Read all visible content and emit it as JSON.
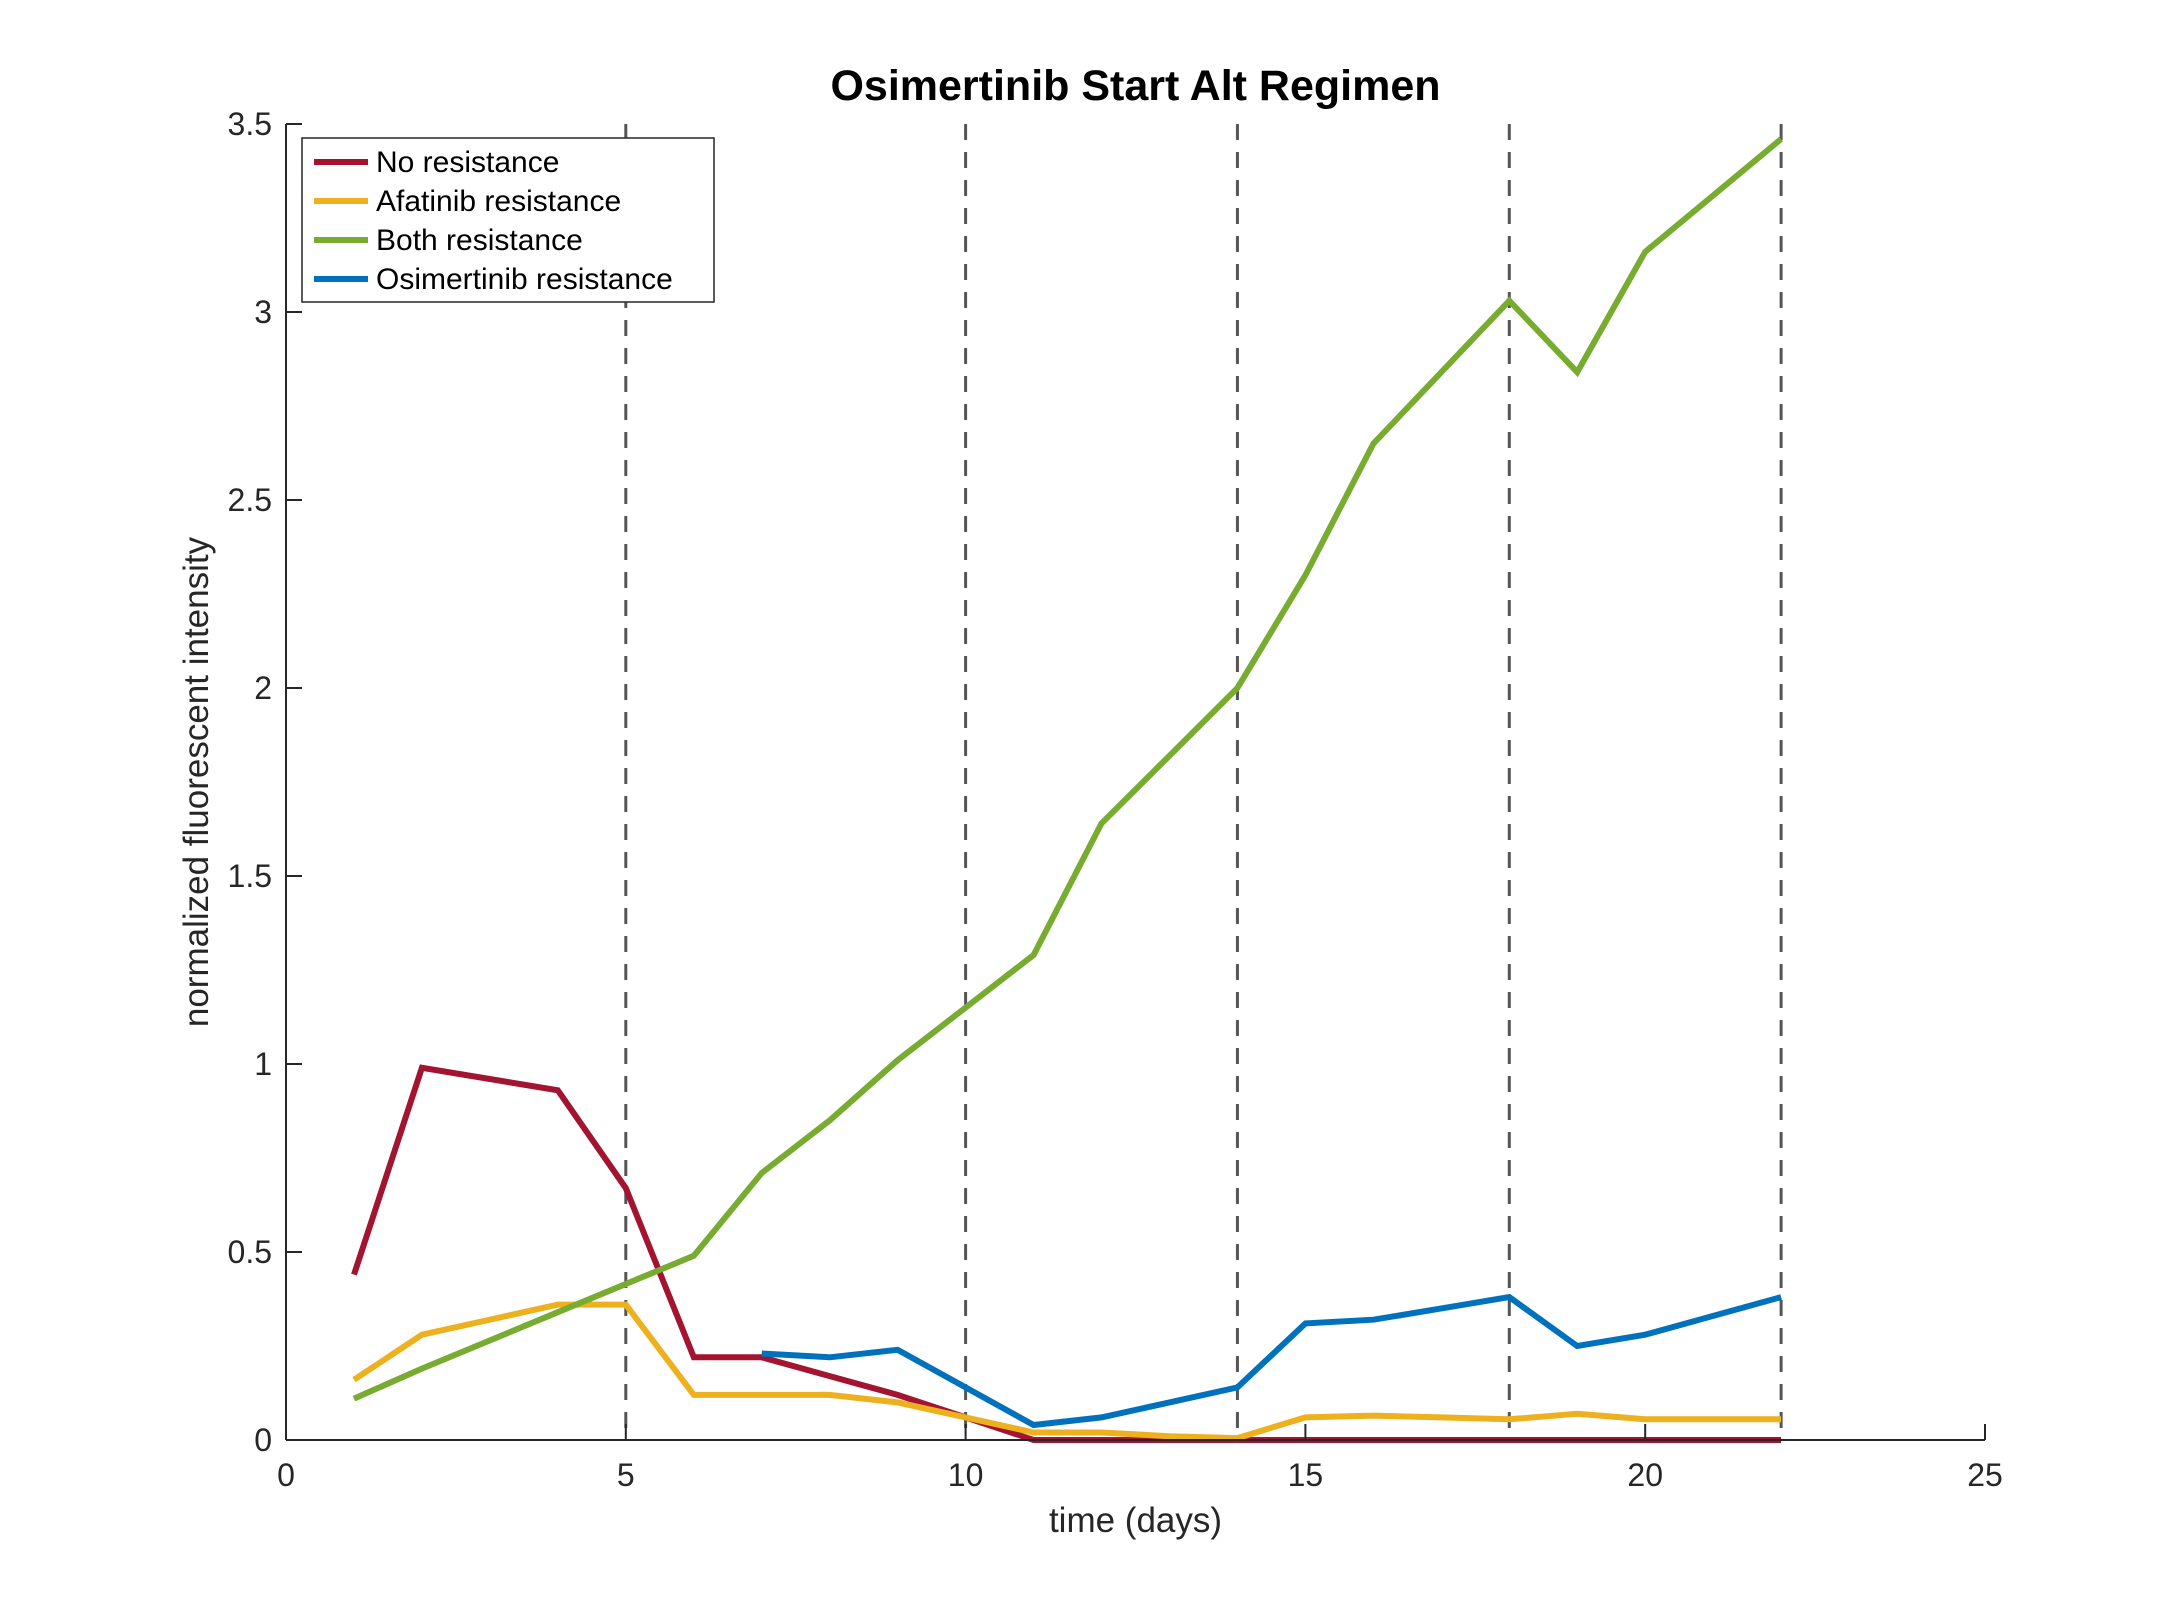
{
  "chart_data": {
    "type": "line",
    "title": "Osimertinib Start Alt Regimen",
    "xlabel": "time (days)",
    "ylabel": "normalized fluorescent intensity",
    "xlim": [
      0,
      25
    ],
    "ylim": [
      0,
      3.5
    ],
    "x_ticks": [
      "0",
      "5",
      "10",
      "15",
      "20",
      "25"
    ],
    "y_ticks": [
      "0",
      "0.5",
      "1",
      "1.5",
      "2",
      "2.5",
      "3",
      "3.5"
    ],
    "grid": false,
    "legend_position": "top-left",
    "vertical_lines": [
      5,
      10,
      14,
      18,
      22
    ],
    "series": [
      {
        "name": "No resistance",
        "color": "#A2142F",
        "x": [
          1,
          2,
          4,
          5,
          6,
          7,
          8,
          9,
          10,
          11,
          12,
          13,
          14,
          15,
          16,
          17,
          18,
          19,
          20,
          21,
          22
        ],
        "y": [
          0.44,
          0.99,
          0.93,
          0.67,
          0.22,
          0.22,
          0.17,
          0.12,
          0.06,
          0.0,
          0.0,
          0.0,
          0.0,
          0.0,
          0.0,
          0.0,
          0.0,
          0.0,
          0.0,
          0.0,
          0.0
        ]
      },
      {
        "name": "Afatinib resistance",
        "color": "#EDB120",
        "x": [
          1,
          2,
          4,
          5,
          6,
          7,
          8,
          9,
          10,
          11,
          12,
          13,
          14,
          15,
          16,
          17,
          18,
          19,
          20,
          21,
          22
        ],
        "y": [
          0.16,
          0.28,
          0.36,
          0.36,
          0.12,
          0.12,
          0.12,
          0.1,
          0.06,
          0.02,
          0.02,
          0.01,
          0.005,
          0.06,
          0.065,
          0.06,
          0.055,
          0.07,
          0.055,
          0.055,
          0.055
        ]
      },
      {
        "name": "Both resistance",
        "color": "#77AC30",
        "x": [
          1,
          2,
          4,
          6,
          7,
          8,
          9,
          10,
          11,
          12,
          13,
          14,
          15,
          16,
          17,
          18,
          19,
          20,
          21,
          22
        ],
        "y": [
          0.11,
          0.19,
          0.34,
          0.49,
          0.71,
          0.85,
          1.01,
          1.15,
          1.29,
          1.64,
          1.82,
          2.0,
          2.3,
          2.65,
          2.84,
          3.03,
          2.84,
          3.16,
          3.31,
          3.46
        ]
      },
      {
        "name": "Osimertinib resistance",
        "color": "#0072BD",
        "x": [
          7,
          8,
          9,
          10,
          11,
          12,
          13,
          14,
          15,
          16,
          17,
          18,
          19,
          20,
          21,
          22
        ],
        "y": [
          0.23,
          0.22,
          0.24,
          0.14,
          0.04,
          0.06,
          0.1,
          0.14,
          0.31,
          0.32,
          0.35,
          0.38,
          0.25,
          0.28,
          0.33,
          0.38
        ]
      }
    ]
  }
}
